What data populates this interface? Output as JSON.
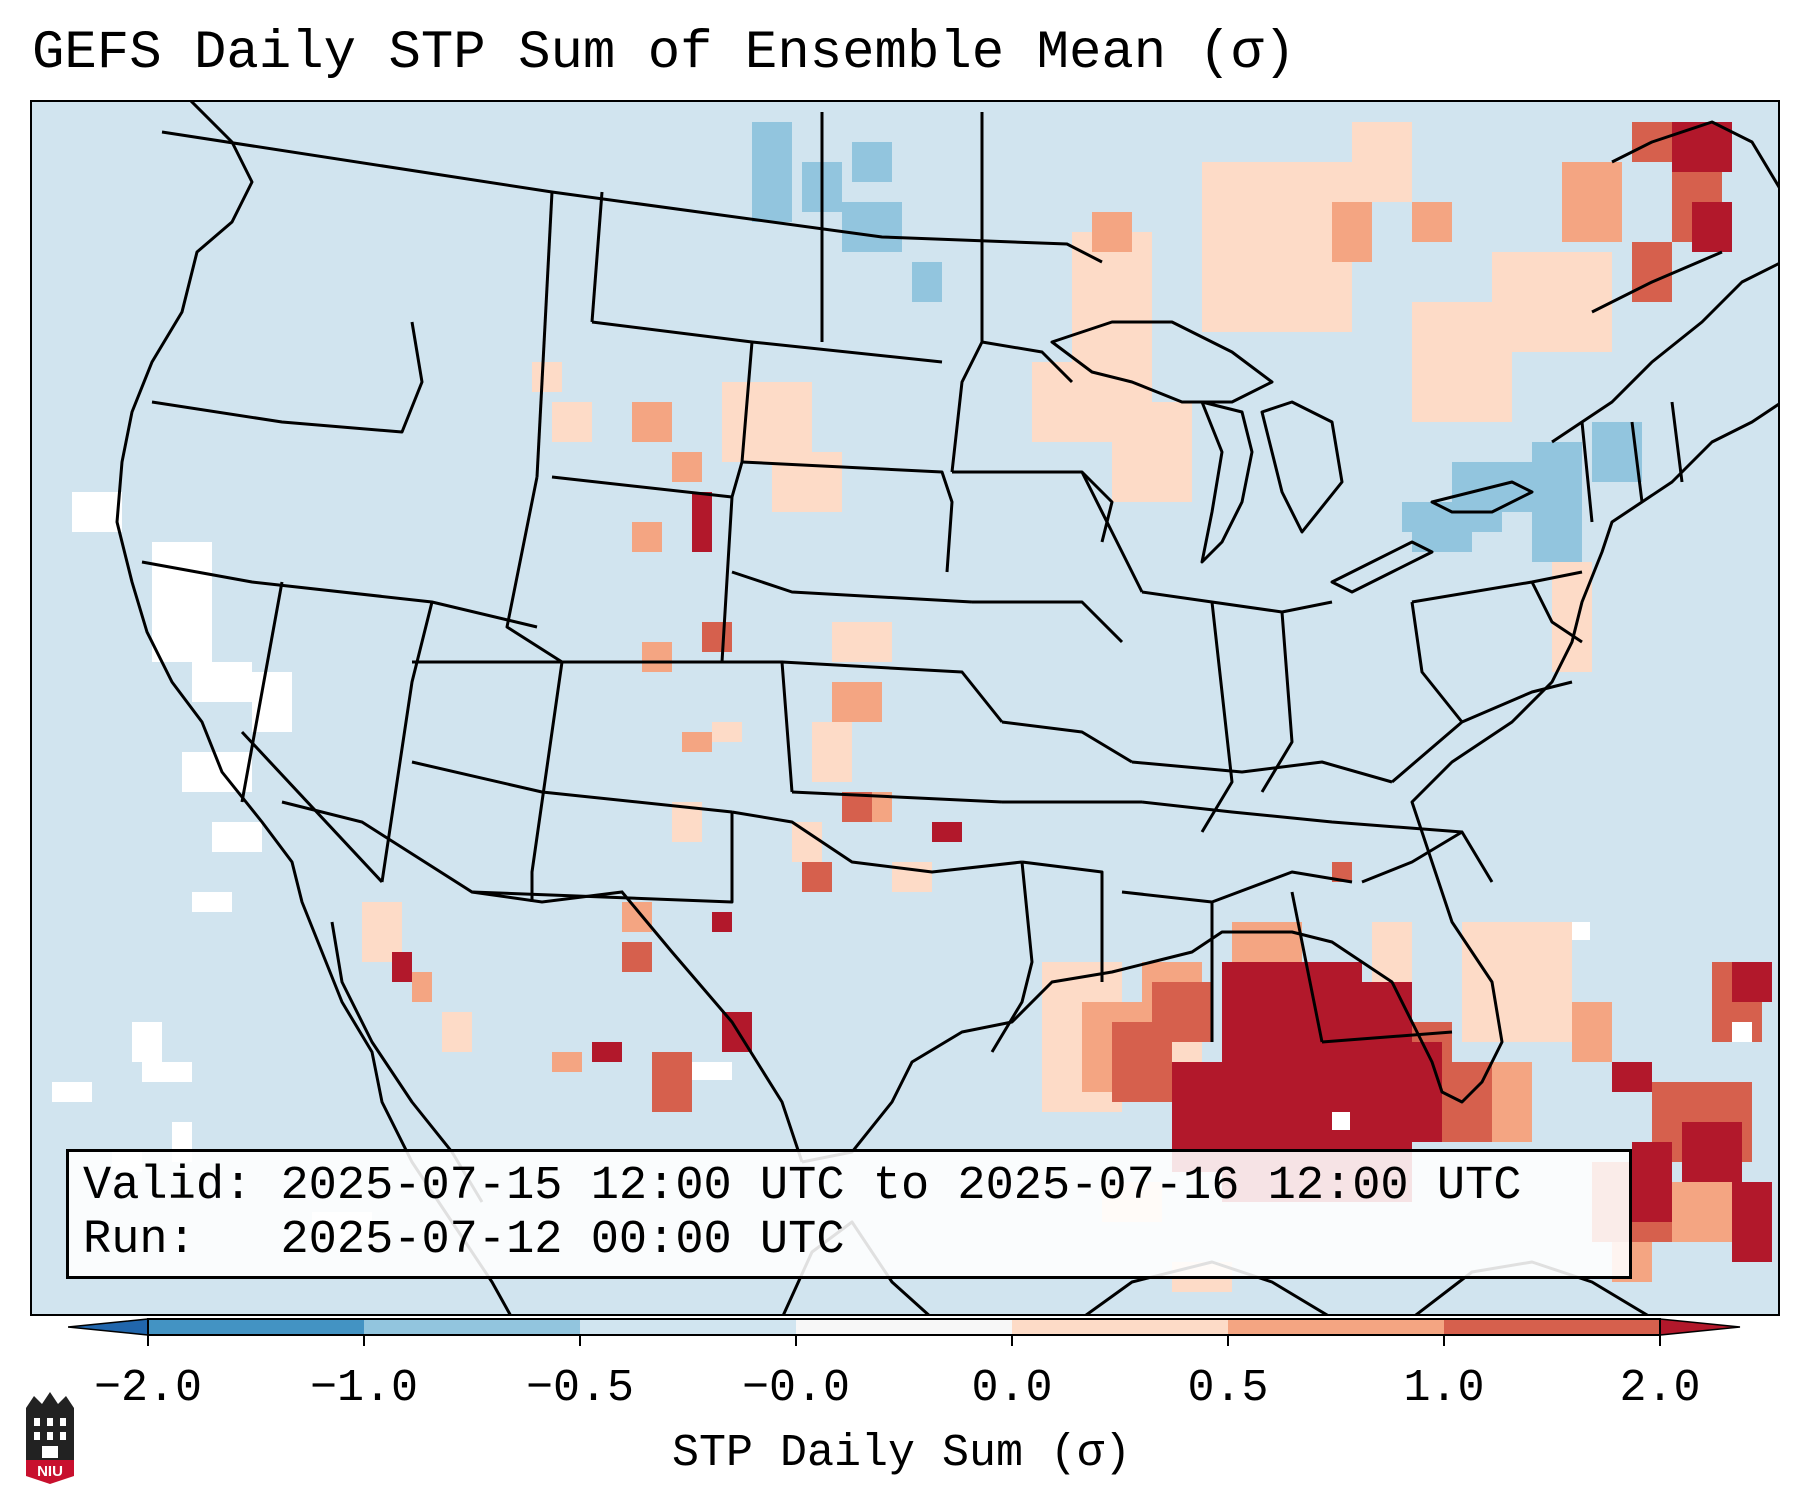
{
  "title": "GEFS Daily STP Sum of Ensemble Mean (σ)",
  "info": {
    "valid_label": "Valid:",
    "valid_value": "2025-07-15 12:00 UTC to 2025-07-16 12:00 UTC",
    "run_label": "Run:",
    "run_value": "2025-07-12 00:00 UTC"
  },
  "colorbar": {
    "label": "STP Daily Sum (σ)",
    "ticks": [
      "−2.0",
      "−1.0",
      "−0.5",
      "−0.0",
      "0.0",
      "0.5",
      "1.0",
      "2.0"
    ],
    "bins": [
      {
        "from": "−2.0",
        "to": "−1.0",
        "color": "#4393c3"
      },
      {
        "from": "−1.0",
        "to": "−0.5",
        "color": "#92c5de"
      },
      {
        "from": "−0.5",
        "to": "−0.0",
        "color": "#d1e5f0"
      },
      {
        "from": "−0.0",
        "to": "0.0",
        "color": "#f7f7f7"
      },
      {
        "from": "0.0",
        "to": "0.5",
        "color": "#fddbc7"
      },
      {
        "from": "0.5",
        "to": "1.0",
        "color": "#f4a582"
      },
      {
        "from": "1.0",
        "to": "2.0",
        "color": "#d6604d"
      }
    ],
    "under_color": "#2166ac",
    "over_color": "#b2182b"
  },
  "logo": {
    "text": "NIU",
    "color": "#c8102e"
  },
  "map": {
    "background_color": "#d1e4ef",
    "regions": [
      {
        "name": "Southeast US / Gulf of Mexico",
        "level": "2.0"
      },
      {
        "name": "Southern Florida",
        "level": "1.0"
      },
      {
        "name": "Gulf Coast",
        "level": "0.5"
      },
      {
        "name": "Bahamas",
        "level": "2.0"
      },
      {
        "name": "Quebec",
        "level": "2.0"
      },
      {
        "name": "Great Lakes / Ontario",
        "level": "0.0"
      },
      {
        "name": "Wyoming / Colorado",
        "level": "0.5"
      },
      {
        "name": "Texas / Oklahoma",
        "level": "0.5"
      },
      {
        "name": "Pennsylvania / New York",
        "level": "−0.5"
      },
      {
        "name": "Montana / North Dakota",
        "level": "−0.5"
      },
      {
        "name": "California / Pacific",
        "level": "−0.0"
      }
    ]
  }
}
